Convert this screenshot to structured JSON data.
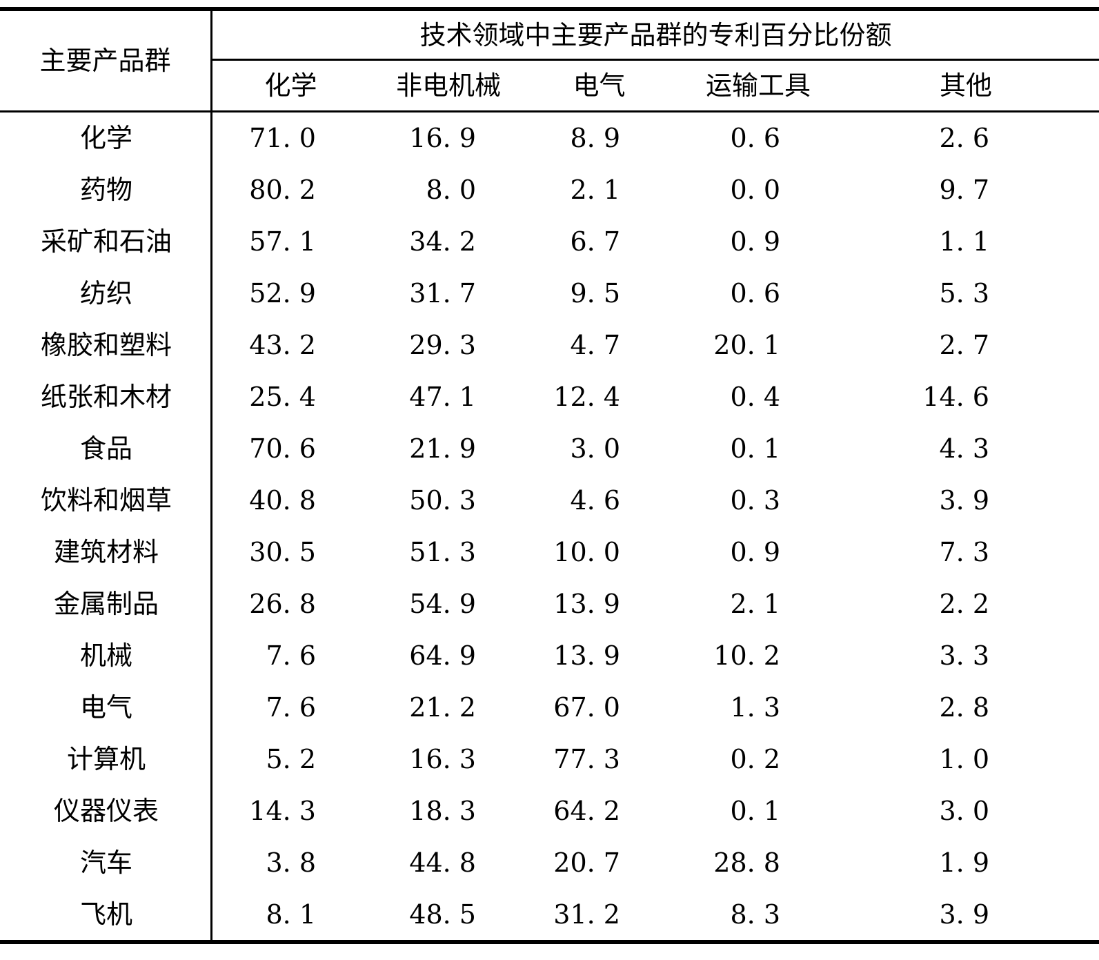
{
  "colors": {
    "ink": "#000000",
    "background": "#ffffff"
  },
  "table": {
    "row_header": "主要产品群",
    "span_title": "技术领域中主要产品群的专利百分比份额",
    "columns": [
      "化学",
      "非电机械",
      "电气",
      "运输工具",
      "其他"
    ],
    "rows": [
      {
        "label": "化学",
        "values": [
          "71. 0",
          "16. 9",
          "8. 9",
          "0. 6",
          "2. 6"
        ]
      },
      {
        "label": "药物",
        "values": [
          "80. 2",
          "8. 0",
          "2. 1",
          "0. 0",
          "9. 7"
        ]
      },
      {
        "label": "采矿和石油",
        "values": [
          "57. 1",
          "34. 2",
          "6. 7",
          "0. 9",
          "1. 1"
        ]
      },
      {
        "label": "纺织",
        "values": [
          "52. 9",
          "31. 7",
          "9. 5",
          "0. 6",
          "5. 3"
        ]
      },
      {
        "label": "橡胶和塑料",
        "values": [
          "43. 2",
          "29. 3",
          "4. 7",
          "20. 1",
          "2. 7"
        ]
      },
      {
        "label": "纸张和木材",
        "values": [
          "25. 4",
          "47. 1",
          "12. 4",
          "0. 4",
          "14. 6"
        ]
      },
      {
        "label": "食品",
        "values": [
          "70. 6",
          "21. 9",
          "3. 0",
          "0. 1",
          "4. 3"
        ]
      },
      {
        "label": "饮料和烟草",
        "values": [
          "40. 8",
          "50. 3",
          "4. 6",
          "0. 3",
          "3. 9"
        ]
      },
      {
        "label": "建筑材料",
        "values": [
          "30. 5",
          "51. 3",
          "10. 0",
          "0. 9",
          "7. 3"
        ]
      },
      {
        "label": "金属制品",
        "values": [
          "26. 8",
          "54. 9",
          "13. 9",
          "2. 1",
          "2. 2"
        ]
      },
      {
        "label": "机械",
        "values": [
          "7. 6",
          "64. 9",
          "13. 9",
          "10. 2",
          "3. 3"
        ]
      },
      {
        "label": "电气",
        "values": [
          "7. 6",
          "21. 2",
          "67. 0",
          "1. 3",
          "2. 8"
        ]
      },
      {
        "label": "计算机",
        "values": [
          "5. 2",
          "16. 3",
          "77. 3",
          "0. 2",
          "1. 0"
        ]
      },
      {
        "label": "仪器仪表",
        "values": [
          "14. 3",
          "18. 3",
          "64. 2",
          "0. 1",
          "3. 0"
        ]
      },
      {
        "label": "汽车",
        "values": [
          "3. 8",
          "44. 8",
          "20. 7",
          "28. 8",
          "1. 9"
        ]
      },
      {
        "label": "飞机",
        "values": [
          "8. 1",
          "48. 5",
          "31. 2",
          "8. 3",
          "3. 9"
        ]
      }
    ]
  },
  "chart_data": {
    "type": "table",
    "title": "技术领域中主要产品群的专利百分比份额",
    "row_header": "主要产品群",
    "columns": [
      "化学",
      "非电机械",
      "电气",
      "运输工具",
      "其他"
    ],
    "row_labels": [
      "化学",
      "药物",
      "采矿和石油",
      "纺织",
      "橡胶和塑料",
      "纸张和木材",
      "食品",
      "饮料和烟草",
      "建筑材料",
      "金属制品",
      "机械",
      "电气",
      "计算机",
      "仪器仪表",
      "汽车",
      "飞机"
    ],
    "values": [
      [
        71.0,
        16.9,
        8.9,
        0.6,
        2.6
      ],
      [
        80.2,
        8.0,
        2.1,
        0.0,
        9.7
      ],
      [
        57.1,
        34.2,
        6.7,
        0.9,
        1.1
      ],
      [
        52.9,
        31.7,
        9.5,
        0.6,
        5.3
      ],
      [
        43.2,
        29.3,
        4.7,
        20.1,
        2.7
      ],
      [
        25.4,
        47.1,
        12.4,
        0.4,
        14.6
      ],
      [
        70.6,
        21.9,
        3.0,
        0.1,
        4.3
      ],
      [
        40.8,
        50.3,
        4.6,
        0.3,
        3.9
      ],
      [
        30.5,
        51.3,
        10.0,
        0.9,
        7.3
      ],
      [
        26.8,
        54.9,
        13.9,
        2.1,
        2.2
      ],
      [
        7.6,
        64.9,
        13.9,
        10.2,
        3.3
      ],
      [
        7.6,
        21.2,
        67.0,
        1.3,
        2.8
      ],
      [
        5.2,
        16.3,
        77.3,
        0.2,
        1.0
      ],
      [
        14.3,
        18.3,
        64.2,
        0.1,
        3.0
      ],
      [
        3.8,
        44.8,
        20.7,
        28.8,
        1.9
      ],
      [
        8.1,
        48.5,
        31.2,
        8.3,
        3.9
      ]
    ]
  }
}
